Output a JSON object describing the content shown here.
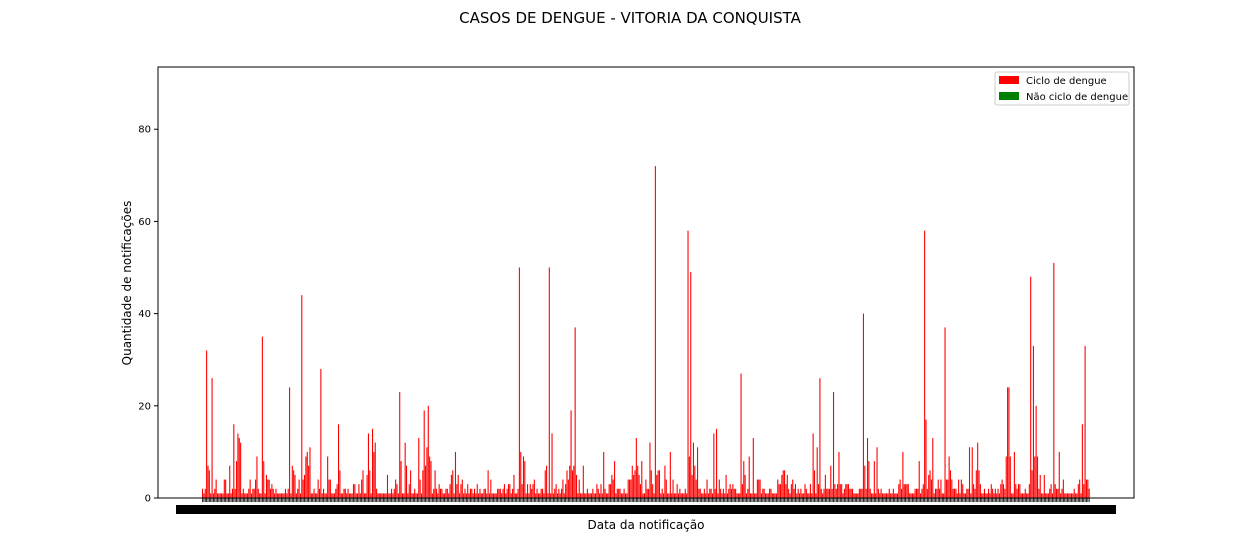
{
  "chart_data": {
    "type": "bar",
    "title": "CASOS DE DENGUE - VITORIA DA CONQUISTA",
    "xlabel": "Data da notificação",
    "ylabel": "Quantidade de notificações",
    "ylim": [
      0,
      93.5
    ],
    "yticks": [
      "0",
      "20",
      "40",
      "60",
      "80"
    ],
    "grid": false,
    "legend_position": "top-right",
    "series": [
      {
        "name": "Ciclo de dengue",
        "color": "#ff0000",
        "values": [
          2,
          1,
          2,
          32,
          7,
          6,
          1,
          26,
          1,
          2,
          4,
          1,
          1,
          1,
          1,
          1,
          4,
          4,
          1,
          1,
          7,
          1,
          2,
          16,
          2,
          8,
          14,
          13,
          12,
          1,
          2,
          1,
          1,
          1,
          2,
          4,
          1,
          2,
          2,
          4,
          9,
          2,
          1,
          1,
          35,
          8,
          1,
          5,
          4,
          4,
          2,
          3,
          2,
          1,
          2,
          1,
          1,
          1,
          1,
          1,
          1,
          2,
          1,
          2,
          24,
          1,
          7,
          6,
          5,
          1,
          2,
          4,
          1,
          44,
          4,
          5,
          9,
          10,
          7,
          11,
          1,
          1,
          2,
          1,
          1,
          4,
          2,
          28,
          1,
          2,
          1,
          1,
          9,
          4,
          4,
          1,
          1,
          1,
          2,
          3,
          16,
          6,
          1,
          1,
          2,
          2,
          1,
          2,
          1,
          1,
          1,
          3,
          3,
          1,
          1,
          3,
          1,
          4,
          6,
          1,
          1,
          5,
          14,
          6,
          1,
          15,
          10,
          12,
          2,
          1,
          1,
          1,
          1,
          1,
          1,
          1,
          5,
          1,
          1,
          2,
          1,
          2,
          4,
          3,
          1,
          23,
          8,
          1,
          1,
          12,
          7,
          1,
          3,
          6,
          1,
          1,
          2,
          1,
          1,
          13,
          4,
          1,
          6,
          19,
          7,
          11,
          20,
          9,
          8,
          1,
          2,
          6,
          2,
          1,
          3,
          2,
          2,
          1,
          1,
          2,
          2,
          1,
          3,
          5,
          6,
          1,
          10,
          3,
          5,
          1,
          3,
          4,
          1,
          2,
          1,
          3,
          1,
          2,
          2,
          1,
          2,
          1,
          3,
          1,
          2,
          1,
          1,
          2,
          2,
          1,
          6,
          1,
          4,
          1,
          1,
          1,
          1,
          2,
          2,
          2,
          1,
          2,
          3,
          1,
          2,
          3,
          3,
          1,
          2,
          5,
          1,
          1,
          2,
          50,
          10,
          3,
          9,
          8,
          1,
          3,
          1,
          3,
          2,
          3,
          4,
          1,
          2,
          1,
          1,
          2,
          2,
          1,
          6,
          7,
          1,
          50,
          1,
          14,
          1,
          2,
          3,
          1,
          2,
          1,
          2,
          4,
          1,
          3,
          6,
          4,
          7,
          19,
          6,
          7,
          37,
          5,
          1,
          4,
          1,
          1,
          7,
          1,
          1,
          2,
          1,
          1,
          1,
          2,
          1,
          1,
          3,
          2,
          1,
          3,
          1,
          10,
          2,
          1,
          1,
          3,
          3,
          5,
          4,
          8,
          1,
          2,
          2,
          2,
          1,
          1,
          2,
          1,
          1,
          4,
          4,
          4,
          7,
          5,
          6,
          13,
          7,
          5,
          3,
          8,
          1,
          1,
          4,
          2,
          2,
          12,
          6,
          3,
          1,
          72,
          5,
          6,
          6,
          1,
          2,
          1,
          7,
          4,
          1,
          1,
          10,
          1,
          4,
          1,
          1,
          3,
          1,
          2,
          1,
          1,
          1,
          2,
          1,
          58,
          9,
          49,
          5,
          12,
          7,
          4,
          11,
          2,
          2,
          1,
          1,
          2,
          1,
          4,
          1,
          2,
          2,
          1,
          14,
          2,
          15,
          1,
          4,
          2,
          1,
          2,
          1,
          5,
          1,
          2,
          3,
          2,
          3,
          2,
          2,
          1,
          1,
          1,
          27,
          3,
          8,
          5,
          1,
          2,
          9,
          1,
          1,
          13,
          1,
          1,
          4,
          4,
          4,
          1,
          2,
          2,
          1,
          1,
          1,
          2,
          2,
          1,
          1,
          1,
          1,
          4,
          3,
          3,
          5,
          6,
          6,
          3,
          5,
          2,
          1,
          3,
          4,
          2,
          3,
          1,
          2,
          1,
          2,
          1,
          1,
          3,
          2,
          1,
          1,
          3,
          1,
          14,
          6,
          1,
          11,
          3,
          26,
          2,
          1,
          2,
          5,
          2,
          2,
          2,
          7,
          2,
          23,
          3,
          2,
          3,
          10,
          3,
          3,
          1,
          2,
          3,
          3,
          3,
          2,
          2,
          2,
          1,
          1,
          1,
          1,
          2,
          2,
          2,
          40,
          7,
          2,
          13,
          8,
          2,
          1,
          1,
          8,
          1,
          11,
          2,
          1,
          2,
          1,
          1,
          1,
          1,
          1,
          2,
          1,
          1,
          2,
          1,
          1,
          1,
          3,
          4,
          2,
          10,
          3,
          3,
          3,
          3,
          1,
          1,
          1,
          1,
          2,
          2,
          2,
          8,
          1,
          2,
          3,
          58,
          17,
          2,
          5,
          6,
          4,
          13,
          1,
          2,
          2,
          4,
          2,
          4,
          1,
          1,
          37,
          4,
          4,
          9,
          6,
          4,
          2,
          2,
          2,
          1,
          4,
          1,
          4,
          3,
          1,
          1,
          2,
          2,
          11,
          1,
          11,
          3,
          2,
          6,
          12,
          6,
          3,
          1,
          1,
          2,
          1,
          1,
          2,
          1,
          3,
          2,
          1,
          2,
          1,
          2,
          1,
          3,
          4,
          3,
          2,
          9,
          24,
          24,
          9,
          1,
          1,
          10,
          3,
          2,
          3,
          3,
          1,
          1,
          1,
          2,
          1,
          1,
          3,
          48,
          6,
          33,
          9,
          20,
          9,
          2,
          5,
          1,
          1,
          5,
          1,
          1,
          1,
          2,
          3,
          1,
          51,
          3,
          2,
          2,
          10,
          1,
          2,
          4,
          1,
          1,
          1,
          1,
          1,
          1,
          1,
          2,
          1,
          1,
          3,
          4,
          1,
          16,
          3,
          33,
          4,
          4,
          2
        ]
      },
      {
        "name": "Não ciclo de dengue",
        "color": "#008000",
        "values": []
      }
    ]
  }
}
